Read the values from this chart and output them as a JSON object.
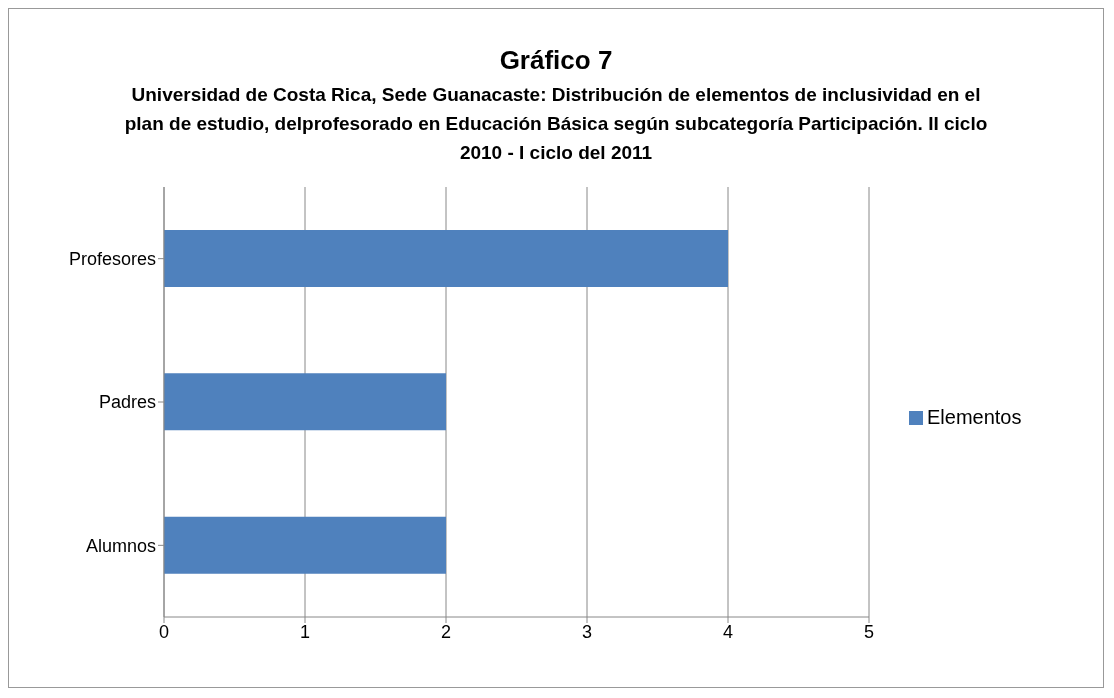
{
  "chart_data": {
    "type": "bar",
    "orientation": "horizontal",
    "title": "Gráfico 7",
    "subtitle": "Universidad de Costa Rica, Sede Guanacaste: Distribución de elementos de inclusividad en el plan de estudio, delprofesorado en Educación Básica según subcategoría Participación. II ciclo 2010 - I ciclo del 2011",
    "categories": [
      "Profesores",
      "Padres",
      "Alumnos"
    ],
    "series": [
      {
        "name": "Elementos",
        "color": "#4f81bd",
        "values": [
          4,
          2,
          2
        ]
      }
    ],
    "xlim": [
      0,
      5
    ],
    "xticks": [
      0,
      1,
      2,
      3,
      4,
      5
    ],
    "grid": "x",
    "legend": "right"
  }
}
